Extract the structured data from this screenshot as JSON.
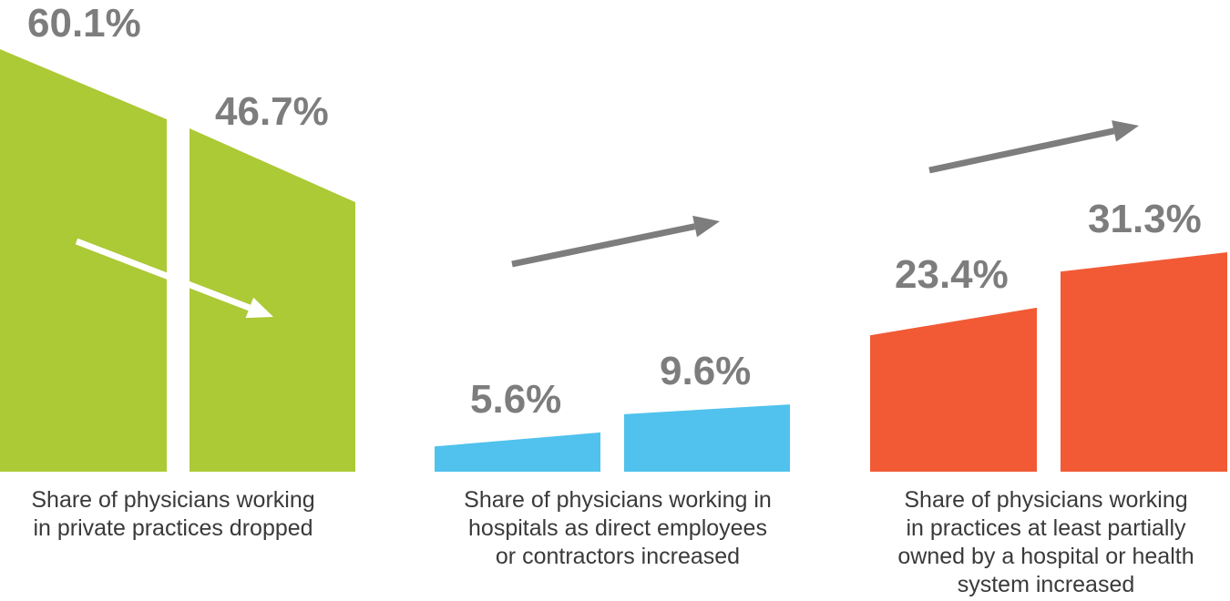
{
  "chart_data": {
    "type": "bar",
    "groups": [
      {
        "caption": "Share of physicians working\nin private practices dropped",
        "color": "#acc936",
        "values": [
          60.1,
          46.7
        ],
        "labels": [
          "60.1%",
          "46.7%"
        ],
        "trend": "down",
        "arrow_color": "#ffffff"
      },
      {
        "caption": "Share of physicians working in\nhospitals as direct employees\nor contractors increased",
        "color": "#50c2ed",
        "values": [
          5.6,
          9.6
        ],
        "labels": [
          "5.6%",
          "9.6%"
        ],
        "trend": "up",
        "arrow_color": "#7d7d7d"
      },
      {
        "caption": "Share of physicians working\nin practices at least partially\nowned by a hospital or health\nsystem increased",
        "color": "#f15a35",
        "values": [
          23.4,
          31.3
        ],
        "labels": [
          "23.4%",
          "31.3%"
        ],
        "trend": "up",
        "arrow_color": "#7d7d7d"
      }
    ]
  }
}
